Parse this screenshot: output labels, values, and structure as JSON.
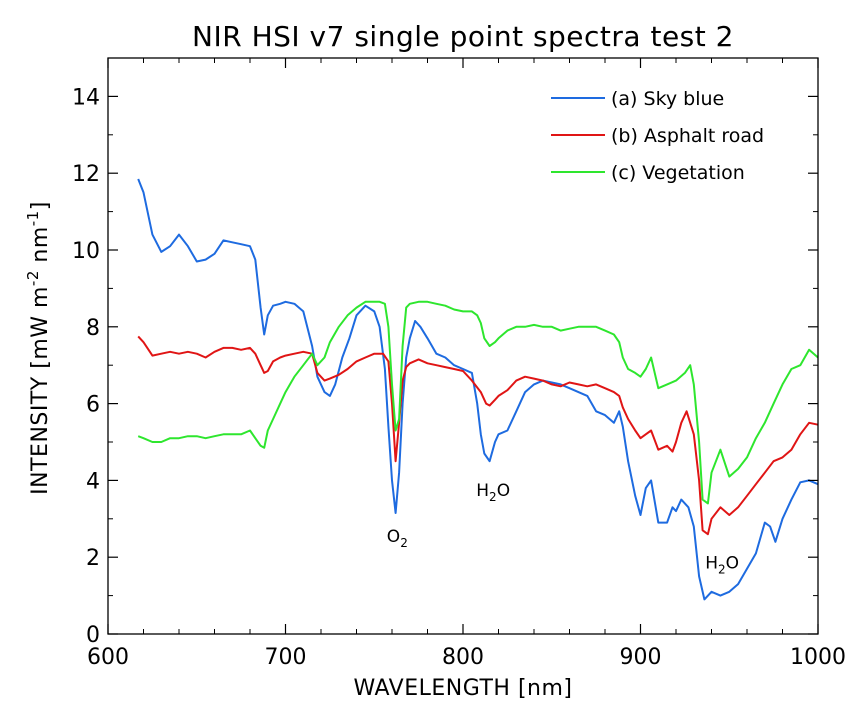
{
  "chart_data": {
    "type": "line",
    "title": "NIR HSI v7 single point spectra test 2",
    "xlabel": "WAVELENGTH [nm]",
    "ylabel": "INTENSITY [mW m",
    "ylabel_exp1": "-2",
    "ylabel_mid": " nm",
    "ylabel_exp2": "-1",
    "ylabel_end": "]",
    "xlim": [
      600,
      1000
    ],
    "ylim": [
      0,
      15
    ],
    "xticks": [
      600,
      700,
      800,
      900,
      1000
    ],
    "yticks": [
      0,
      2,
      4,
      6,
      8,
      10,
      12,
      14
    ],
    "legend_position": "top-right",
    "series": [
      {
        "name": "(a) Sky blue",
        "color": "#1e6be0",
        "x": [
          617,
          620,
          625,
          630,
          635,
          640,
          645,
          650,
          655,
          660,
          665,
          670,
          675,
          680,
          683,
          686,
          688,
          690,
          693,
          697,
          700,
          705,
          710,
          715,
          718,
          722,
          725,
          728,
          732,
          736,
          740,
          745,
          750,
          753,
          756,
          758,
          760,
          762,
          764,
          766,
          768,
          770,
          773,
          776,
          780,
          785,
          790,
          795,
          800,
          805,
          808,
          810,
          812,
          815,
          818,
          820,
          825,
          830,
          835,
          840,
          845,
          850,
          855,
          860,
          865,
          870,
          875,
          880,
          885,
          888,
          890,
          893,
          897,
          900,
          903,
          906,
          910,
          915,
          918,
          920,
          923,
          927,
          930,
          933,
          936,
          940,
          945,
          950,
          955,
          960,
          965,
          970,
          973,
          976,
          980,
          985,
          990,
          995,
          1000
        ],
        "y": [
          11.85,
          11.5,
          10.4,
          9.95,
          10.1,
          10.4,
          10.1,
          9.7,
          9.75,
          9.9,
          10.25,
          10.2,
          10.15,
          10.1,
          9.75,
          8.5,
          7.8,
          8.3,
          8.55,
          8.6,
          8.65,
          8.6,
          8.4,
          7.5,
          6.7,
          6.3,
          6.2,
          6.5,
          7.2,
          7.7,
          8.3,
          8.55,
          8.4,
          8.0,
          6.9,
          5.4,
          4.0,
          3.15,
          4.2,
          6.0,
          7.2,
          7.7,
          8.15,
          8.0,
          7.7,
          7.3,
          7.2,
          7.0,
          6.9,
          6.8,
          6.0,
          5.2,
          4.7,
          4.5,
          5.0,
          5.2,
          5.3,
          5.8,
          6.3,
          6.5,
          6.6,
          6.55,
          6.5,
          6.4,
          6.3,
          6.2,
          5.8,
          5.7,
          5.5,
          5.8,
          5.4,
          4.5,
          3.6,
          3.1,
          3.8,
          4.0,
          2.9,
          2.9,
          3.3,
          3.2,
          3.5,
          3.3,
          2.8,
          1.5,
          0.9,
          1.1,
          1.0,
          1.1,
          1.3,
          1.7,
          2.1,
          2.9,
          2.8,
          2.4,
          3.0,
          3.5,
          3.95,
          4.0,
          3.9
        ]
      },
      {
        "name": "(b) Asphalt road",
        "color": "#e01515",
        "x": [
          617,
          620,
          625,
          630,
          635,
          640,
          645,
          650,
          655,
          660,
          665,
          670,
          675,
          680,
          683,
          686,
          688,
          690,
          693,
          697,
          700,
          705,
          710,
          715,
          718,
          722,
          725,
          730,
          735,
          740,
          745,
          750,
          755,
          758,
          760,
          762,
          764,
          766,
          768,
          770,
          775,
          780,
          785,
          790,
          795,
          800,
          805,
          810,
          813,
          815,
          818,
          820,
          825,
          830,
          835,
          840,
          845,
          850,
          855,
          860,
          865,
          870,
          875,
          880,
          885,
          888,
          890,
          893,
          897,
          900,
          903,
          906,
          910,
          915,
          918,
          920,
          923,
          926,
          930,
          933,
          935,
          938,
          940,
          945,
          950,
          955,
          960,
          965,
          970,
          975,
          980,
          985,
          990,
          995,
          1000
        ],
        "y": [
          7.75,
          7.6,
          7.25,
          7.3,
          7.35,
          7.3,
          7.35,
          7.3,
          7.2,
          7.35,
          7.45,
          7.45,
          7.4,
          7.45,
          7.3,
          7.0,
          6.8,
          6.85,
          7.1,
          7.2,
          7.25,
          7.3,
          7.35,
          7.3,
          6.8,
          6.6,
          6.65,
          6.75,
          6.9,
          7.1,
          7.2,
          7.3,
          7.3,
          7.1,
          6.0,
          4.5,
          5.5,
          6.6,
          6.95,
          7.05,
          7.15,
          7.05,
          7.0,
          6.95,
          6.9,
          6.85,
          6.6,
          6.3,
          6.0,
          5.95,
          6.1,
          6.2,
          6.35,
          6.6,
          6.7,
          6.65,
          6.6,
          6.5,
          6.45,
          6.55,
          6.5,
          6.45,
          6.5,
          6.4,
          6.3,
          6.2,
          5.9,
          5.6,
          5.3,
          5.1,
          5.2,
          5.3,
          4.8,
          4.9,
          4.75,
          5.0,
          5.5,
          5.8,
          5.2,
          4.0,
          2.7,
          2.6,
          3.0,
          3.3,
          3.1,
          3.3,
          3.6,
          3.9,
          4.2,
          4.5,
          4.6,
          4.8,
          5.2,
          5.5,
          5.45
        ]
      },
      {
        "name": "(c) Vegetation",
        "color": "#2ee62e",
        "x": [
          617,
          620,
          625,
          630,
          635,
          640,
          645,
          650,
          655,
          660,
          665,
          670,
          675,
          680,
          683,
          686,
          688,
          690,
          693,
          697,
          700,
          705,
          710,
          715,
          718,
          722,
          725,
          730,
          735,
          740,
          745,
          750,
          753,
          756,
          758,
          760,
          762,
          764,
          766,
          768,
          770,
          775,
          780,
          785,
          790,
          795,
          800,
          805,
          808,
          810,
          812,
          815,
          818,
          820,
          825,
          830,
          835,
          840,
          845,
          850,
          855,
          860,
          865,
          870,
          875,
          880,
          885,
          888,
          890,
          893,
          897,
          900,
          903,
          906,
          910,
          915,
          920,
          925,
          928,
          930,
          933,
          935,
          938,
          940,
          945,
          950,
          955,
          960,
          965,
          970,
          975,
          980,
          985,
          990,
          995,
          1000
        ],
        "y": [
          5.15,
          5.1,
          5.0,
          5.0,
          5.1,
          5.1,
          5.15,
          5.15,
          5.1,
          5.15,
          5.2,
          5.2,
          5.2,
          5.3,
          5.1,
          4.9,
          4.85,
          5.3,
          5.6,
          6.0,
          6.3,
          6.7,
          7.0,
          7.3,
          7.0,
          7.2,
          7.6,
          8.0,
          8.3,
          8.5,
          8.65,
          8.65,
          8.65,
          8.6,
          8.0,
          6.5,
          5.3,
          5.6,
          7.5,
          8.5,
          8.6,
          8.65,
          8.65,
          8.6,
          8.55,
          8.45,
          8.4,
          8.4,
          8.3,
          8.1,
          7.7,
          7.5,
          7.6,
          7.7,
          7.9,
          8.0,
          8.0,
          8.05,
          8.0,
          8.0,
          7.9,
          7.95,
          8.0,
          8.0,
          8.0,
          7.9,
          7.8,
          7.6,
          7.2,
          6.9,
          6.8,
          6.7,
          6.9,
          7.2,
          6.4,
          6.5,
          6.6,
          6.8,
          7.0,
          6.5,
          5.0,
          3.5,
          3.4,
          4.2,
          4.8,
          4.1,
          4.3,
          4.6,
          5.1,
          5.5,
          6.0,
          6.5,
          6.9,
          7.0,
          7.4,
          7.2
        ]
      }
    ],
    "annotations": [
      {
        "text_main": "O",
        "text_sub": "2",
        "x": 763,
        "y": 2.4
      },
      {
        "text_main": "H",
        "text_sub": "2",
        "text_tail": "O",
        "x": 817,
        "y": 3.6
      },
      {
        "text_main": "H",
        "text_sub": "2",
        "text_tail": "O",
        "x": 946,
        "y": 1.7
      }
    ]
  }
}
